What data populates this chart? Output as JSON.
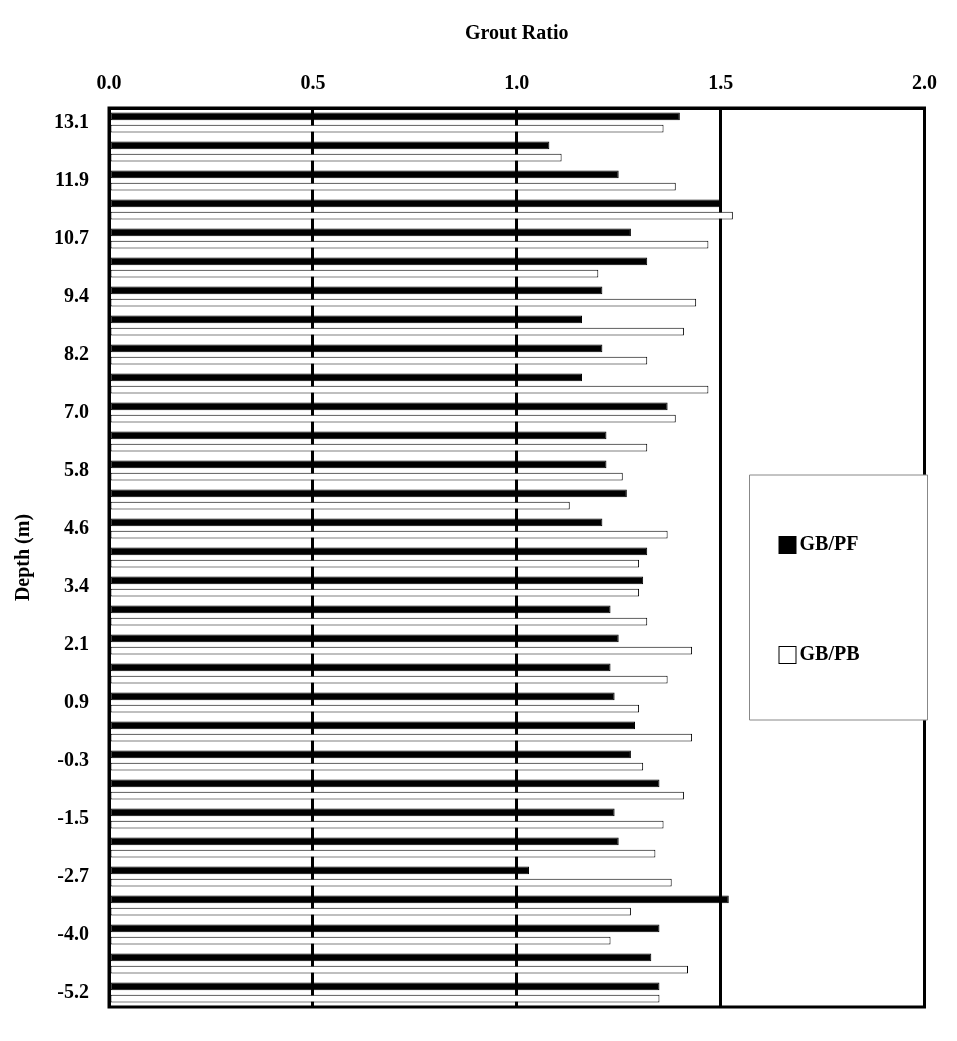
{
  "chart_data": {
    "type": "bar",
    "orientation": "horizontal",
    "xlabel": "Grout Ratio",
    "ylabel": "Depth (m)",
    "categories": [
      "13.1",
      null,
      "11.9",
      null,
      "10.7",
      null,
      "9.4",
      null,
      "8.2",
      null,
      "7.0",
      null,
      "5.8",
      null,
      "4.6",
      null,
      "3.4",
      null,
      "2.1",
      null,
      "0.9",
      null,
      "-0.3",
      null,
      "-1.5",
      null,
      "-2.7",
      null,
      "-4.0",
      null,
      "-5.2"
    ],
    "series": [
      {
        "name": "GB/PF",
        "color": "#000000",
        "values": [
          1.4,
          1.08,
          1.25,
          1.5,
          1.28,
          1.32,
          1.21,
          1.16,
          1.21,
          1.16,
          1.37,
          1.22,
          1.22,
          1.27,
          1.21,
          1.32,
          1.31,
          1.23,
          1.25,
          1.23,
          1.24,
          1.29,
          1.28,
          1.35,
          1.24,
          1.25,
          1.03,
          1.52,
          1.35,
          1.33,
          1.35
        ]
      },
      {
        "name": "GB/PB",
        "color": "#ffffff",
        "values": [
          1.36,
          1.11,
          1.39,
          1.53,
          1.47,
          1.2,
          1.44,
          1.41,
          1.32,
          1.47,
          1.39,
          1.32,
          1.26,
          1.13,
          1.37,
          1.3,
          1.3,
          1.32,
          1.43,
          1.37,
          1.3,
          1.43,
          1.31,
          1.41,
          1.36,
          1.34,
          1.38,
          1.28,
          1.23,
          1.42,
          1.35
        ]
      }
    ],
    "xlim": [
      0,
      2
    ],
    "xticks": [
      {
        "value": 0,
        "label": "0.0"
      },
      {
        "value": 0.5,
        "label": "0.5"
      },
      {
        "value": 1,
        "label": "1.0"
      },
      {
        "value": 1.5,
        "label": "1.5"
      },
      {
        "value": 2,
        "label": "2.0"
      }
    ],
    "grid": "x",
    "legend": "right"
  }
}
